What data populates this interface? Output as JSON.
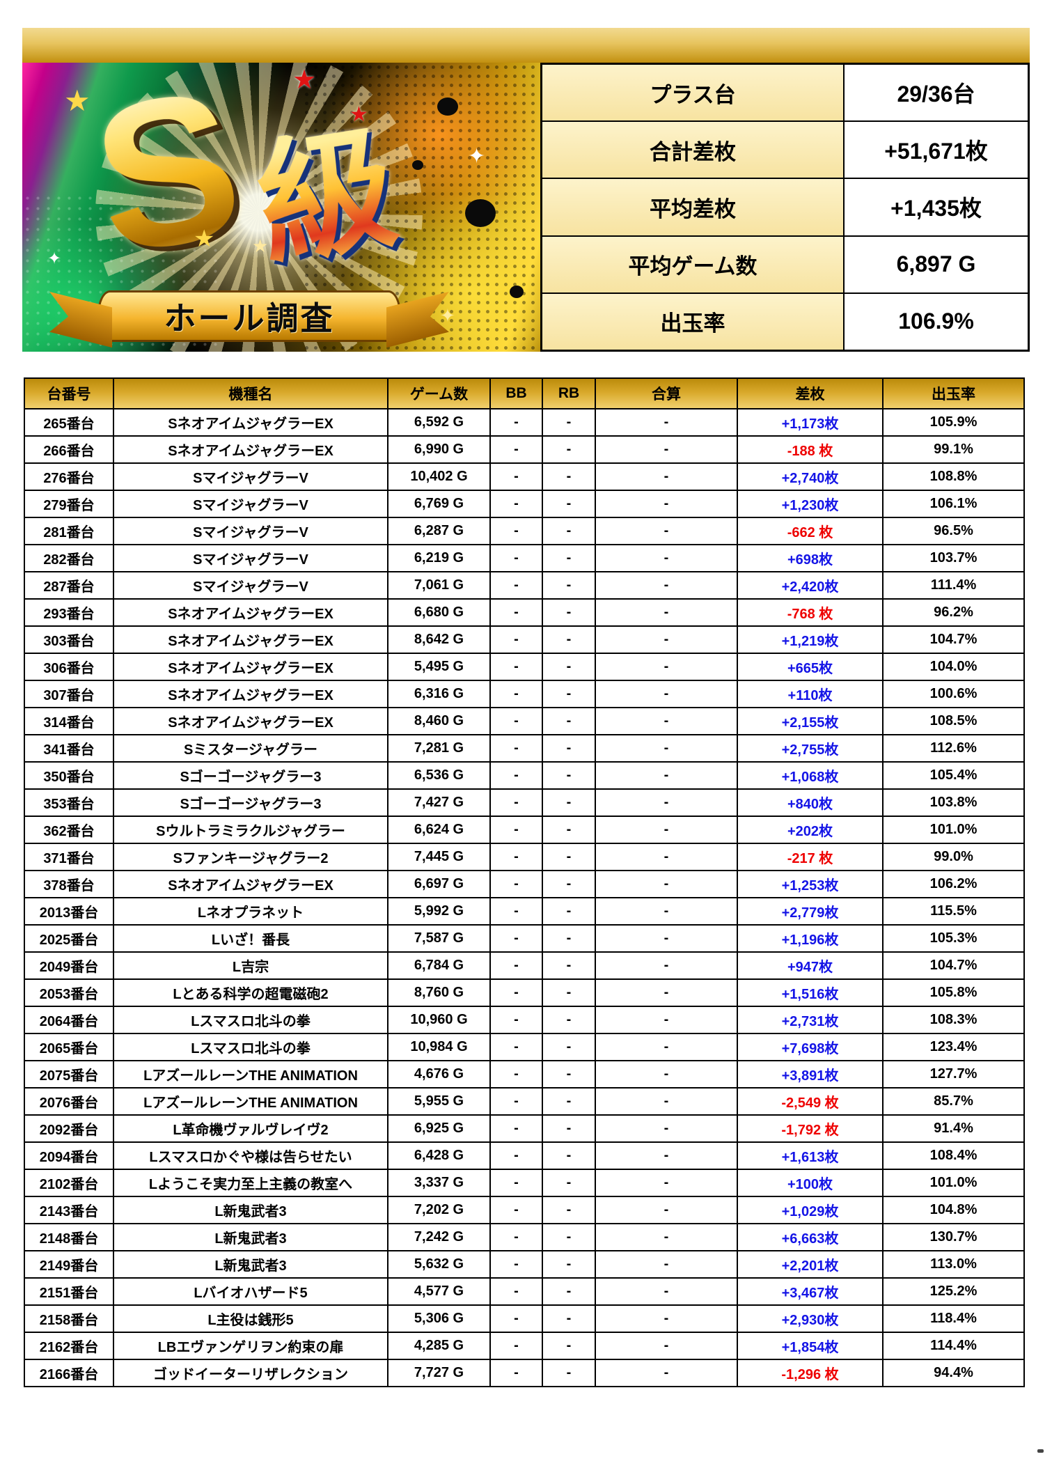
{
  "logo": {
    "badge_main": "S",
    "badge_sub": "級",
    "banner": "ホール調査"
  },
  "summary": {
    "rows": [
      {
        "label": "プラス台",
        "value": "29/36台"
      },
      {
        "label": "合計差枚",
        "value": "+51,671枚"
      },
      {
        "label": "平均差枚",
        "value": "+1,435枚"
      },
      {
        "label": "平均ゲーム数",
        "value": "6,897 G"
      },
      {
        "label": "出玉率",
        "value": "106.9%"
      }
    ]
  },
  "table": {
    "headers": [
      "台番号",
      "機種名",
      "ゲーム数",
      "BB",
      "RB",
      "合算",
      "差枚",
      "出玉率"
    ],
    "rows": [
      {
        "no": "265番台",
        "model": "SネオアイムジャグラーEX",
        "games": "6,592 G",
        "bb": "-",
        "rb": "-",
        "total": "-",
        "diff": "+1,173枚",
        "rate": "105.9%"
      },
      {
        "no": "266番台",
        "model": "SネオアイムジャグラーEX",
        "games": "6,990 G",
        "bb": "-",
        "rb": "-",
        "total": "-",
        "diff": "-188 枚",
        "rate": "99.1%"
      },
      {
        "no": "276番台",
        "model": "SマイジャグラーV",
        "games": "10,402 G",
        "bb": "-",
        "rb": "-",
        "total": "-",
        "diff": "+2,740枚",
        "rate": "108.8%"
      },
      {
        "no": "279番台",
        "model": "SマイジャグラーV",
        "games": "6,769 G",
        "bb": "-",
        "rb": "-",
        "total": "-",
        "diff": "+1,230枚",
        "rate": "106.1%"
      },
      {
        "no": "281番台",
        "model": "SマイジャグラーV",
        "games": "6,287 G",
        "bb": "-",
        "rb": "-",
        "total": "-",
        "diff": "-662 枚",
        "rate": "96.5%"
      },
      {
        "no": "282番台",
        "model": "SマイジャグラーV",
        "games": "6,219 G",
        "bb": "-",
        "rb": "-",
        "total": "-",
        "diff": "+698枚",
        "rate": "103.7%"
      },
      {
        "no": "287番台",
        "model": "SマイジャグラーV",
        "games": "7,061 G",
        "bb": "-",
        "rb": "-",
        "total": "-",
        "diff": "+2,420枚",
        "rate": "111.4%"
      },
      {
        "no": "293番台",
        "model": "SネオアイムジャグラーEX",
        "games": "6,680 G",
        "bb": "-",
        "rb": "-",
        "total": "-",
        "diff": "-768 枚",
        "rate": "96.2%"
      },
      {
        "no": "303番台",
        "model": "SネオアイムジャグラーEX",
        "games": "8,642 G",
        "bb": "-",
        "rb": "-",
        "total": "-",
        "diff": "+1,219枚",
        "rate": "104.7%"
      },
      {
        "no": "306番台",
        "model": "SネオアイムジャグラーEX",
        "games": "5,495 G",
        "bb": "-",
        "rb": "-",
        "total": "-",
        "diff": "+665枚",
        "rate": "104.0%"
      },
      {
        "no": "307番台",
        "model": "SネオアイムジャグラーEX",
        "games": "6,316 G",
        "bb": "-",
        "rb": "-",
        "total": "-",
        "diff": "+110枚",
        "rate": "100.6%"
      },
      {
        "no": "314番台",
        "model": "SネオアイムジャグラーEX",
        "games": "8,460 G",
        "bb": "-",
        "rb": "-",
        "total": "-",
        "diff": "+2,155枚",
        "rate": "108.5%"
      },
      {
        "no": "341番台",
        "model": "Sミスタージャグラー",
        "games": "7,281 G",
        "bb": "-",
        "rb": "-",
        "total": "-",
        "diff": "+2,755枚",
        "rate": "112.6%"
      },
      {
        "no": "350番台",
        "model": "Sゴーゴージャグラー3",
        "games": "6,536 G",
        "bb": "-",
        "rb": "-",
        "total": "-",
        "diff": "+1,068枚",
        "rate": "105.4%"
      },
      {
        "no": "353番台",
        "model": "Sゴーゴージャグラー3",
        "games": "7,427 G",
        "bb": "-",
        "rb": "-",
        "total": "-",
        "diff": "+840枚",
        "rate": "103.8%"
      },
      {
        "no": "362番台",
        "model": "Sウルトラミラクルジャグラー",
        "games": "6,624 G",
        "bb": "-",
        "rb": "-",
        "total": "-",
        "diff": "+202枚",
        "rate": "101.0%"
      },
      {
        "no": "371番台",
        "model": "Sファンキージャグラー2",
        "games": "7,445 G",
        "bb": "-",
        "rb": "-",
        "total": "-",
        "diff": "-217 枚",
        "rate": "99.0%"
      },
      {
        "no": "378番台",
        "model": "SネオアイムジャグラーEX",
        "games": "6,697 G",
        "bb": "-",
        "rb": "-",
        "total": "-",
        "diff": "+1,253枚",
        "rate": "106.2%"
      },
      {
        "no": "2013番台",
        "model": "Lネオプラネット",
        "games": "5,992 G",
        "bb": "-",
        "rb": "-",
        "total": "-",
        "diff": "+2,779枚",
        "rate": "115.5%"
      },
      {
        "no": "2025番台",
        "model": "Lいざ！番長",
        "games": "7,587 G",
        "bb": "-",
        "rb": "-",
        "total": "-",
        "diff": "+1,196枚",
        "rate": "105.3%"
      },
      {
        "no": "2049番台",
        "model": "L吉宗",
        "games": "6,784 G",
        "bb": "-",
        "rb": "-",
        "total": "-",
        "diff": "+947枚",
        "rate": "104.7%"
      },
      {
        "no": "2053番台",
        "model": "Lとある科学の超電磁砲2",
        "games": "8,760 G",
        "bb": "-",
        "rb": "-",
        "total": "-",
        "diff": "+1,516枚",
        "rate": "105.8%"
      },
      {
        "no": "2064番台",
        "model": "Lスマスロ北斗の拳",
        "games": "10,960 G",
        "bb": "-",
        "rb": "-",
        "total": "-",
        "diff": "+2,731枚",
        "rate": "108.3%"
      },
      {
        "no": "2065番台",
        "model": "Lスマスロ北斗の拳",
        "games": "10,984 G",
        "bb": "-",
        "rb": "-",
        "total": "-",
        "diff": "+7,698枚",
        "rate": "123.4%"
      },
      {
        "no": "2075番台",
        "model": "LアズールレーンTHE ANIMATION",
        "games": "4,676 G",
        "bb": "-",
        "rb": "-",
        "total": "-",
        "diff": "+3,891枚",
        "rate": "127.7%"
      },
      {
        "no": "2076番台",
        "model": "LアズールレーンTHE ANIMATION",
        "games": "5,955 G",
        "bb": "-",
        "rb": "-",
        "total": "-",
        "diff": "-2,549 枚",
        "rate": "85.7%"
      },
      {
        "no": "2092番台",
        "model": "L革命機ヴァルヴレイヴ2",
        "games": "6,925 G",
        "bb": "-",
        "rb": "-",
        "total": "-",
        "diff": "-1,792 枚",
        "rate": "91.4%"
      },
      {
        "no": "2094番台",
        "model": "Lスマスロかぐや様は告らせたい",
        "games": "6,428 G",
        "bb": "-",
        "rb": "-",
        "total": "-",
        "diff": "+1,613枚",
        "rate": "108.4%"
      },
      {
        "no": "2102番台",
        "model": "Lようこそ実力至上主義の教室へ",
        "games": "3,337 G",
        "bb": "-",
        "rb": "-",
        "total": "-",
        "diff": "+100枚",
        "rate": "101.0%"
      },
      {
        "no": "2143番台",
        "model": "L新鬼武者3",
        "games": "7,202 G",
        "bb": "-",
        "rb": "-",
        "total": "-",
        "diff": "+1,029枚",
        "rate": "104.8%"
      },
      {
        "no": "2148番台",
        "model": "L新鬼武者3",
        "games": "7,242 G",
        "bb": "-",
        "rb": "-",
        "total": "-",
        "diff": "+6,663枚",
        "rate": "130.7%"
      },
      {
        "no": "2149番台",
        "model": "L新鬼武者3",
        "games": "5,632 G",
        "bb": "-",
        "rb": "-",
        "total": "-",
        "diff": "+2,201枚",
        "rate": "113.0%"
      },
      {
        "no": "2151番台",
        "model": "Lバイオハザード5",
        "games": "4,577 G",
        "bb": "-",
        "rb": "-",
        "total": "-",
        "diff": "+3,467枚",
        "rate": "125.2%"
      },
      {
        "no": "2158番台",
        "model": "L主役は銭形5",
        "games": "5,306 G",
        "bb": "-",
        "rb": "-",
        "total": "-",
        "diff": "+2,930枚",
        "rate": "118.4%"
      },
      {
        "no": "2162番台",
        "model": "LBエヴァンゲリヲン約束の扉",
        "games": "4,285 G",
        "bb": "-",
        "rb": "-",
        "total": "-",
        "diff": "+1,854枚",
        "rate": "114.4%"
      },
      {
        "no": "2166番台",
        "model": "ゴッドイーターリザレクション",
        "games": "7,727 G",
        "bb": "-",
        "rb": "-",
        "total": "-",
        "diff": "-1,296 枚",
        "rate": "94.4%"
      }
    ]
  },
  "colors": {
    "plus_blue": "#1414e6",
    "minus_red": "#ee0000",
    "gold_bar_top": "#f2da90",
    "gold_bar_bottom": "#c2900f",
    "header_gold_top": "#bb8b0b",
    "header_gold_bottom": "#f1d06d",
    "summary_label_bg": "#f7e3a1"
  }
}
